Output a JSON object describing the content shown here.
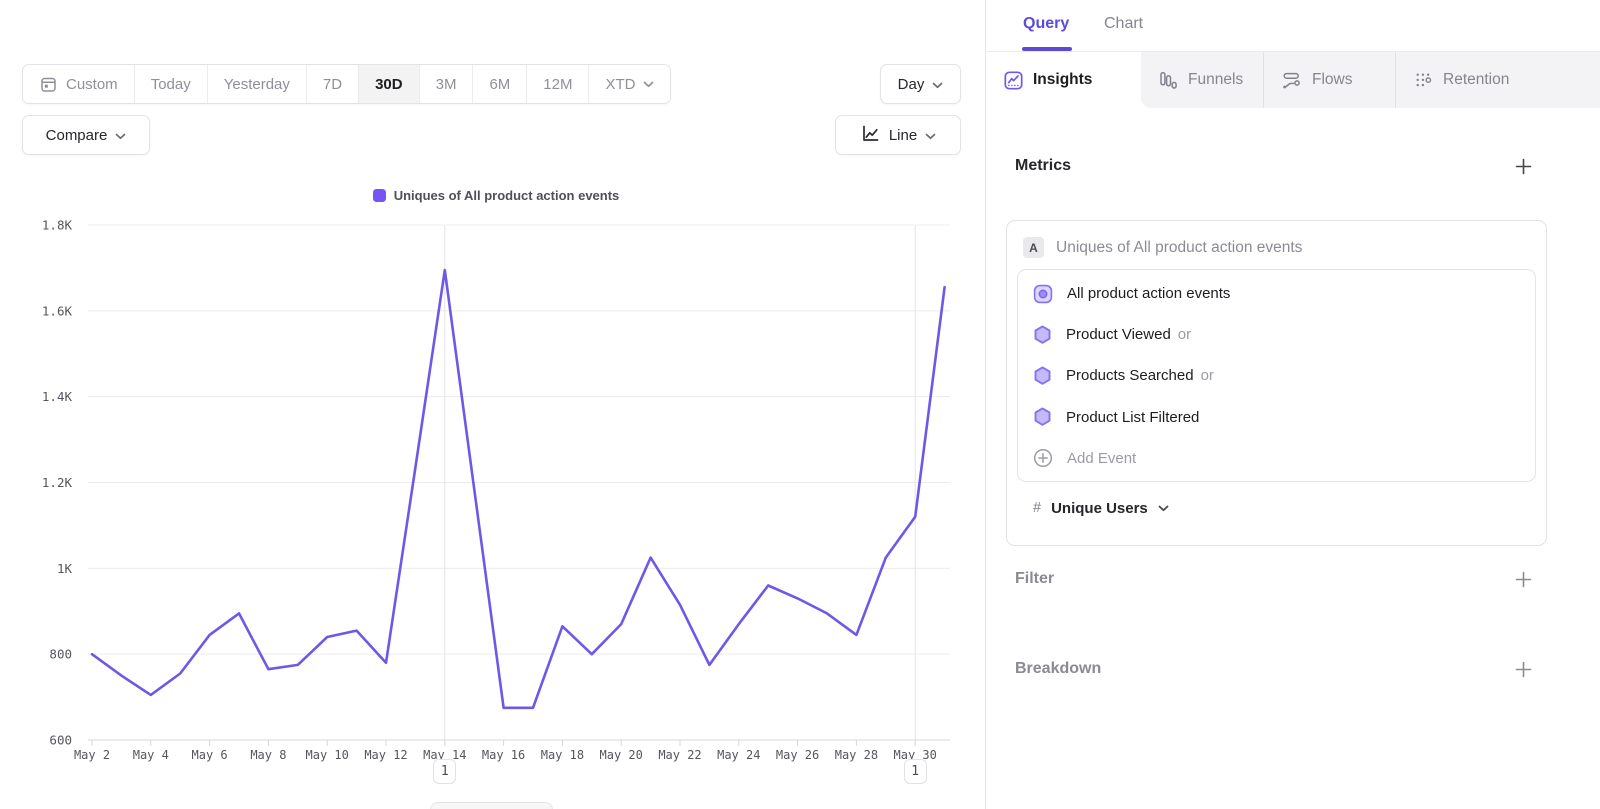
{
  "toolbar": {
    "date_ranges": [
      {
        "label": "Custom",
        "icon": "calendar-icon"
      },
      {
        "label": "Today"
      },
      {
        "label": "Yesterday"
      },
      {
        "label": "7D"
      },
      {
        "label": "30D",
        "active": true
      },
      {
        "label": "3M"
      },
      {
        "label": "6M"
      },
      {
        "label": "12M"
      },
      {
        "label": "XTD",
        "chevron": true
      }
    ],
    "granularity": {
      "label": "Day"
    },
    "compare": {
      "label": "Compare"
    },
    "chart_type": {
      "label": "Line",
      "icon": "line-chart-icon"
    }
  },
  "chart_data": {
    "type": "line",
    "legend": "Uniques of All product action events",
    "line_color": "#6e58e8",
    "x": [
      "May 2",
      "May 3",
      "May 4",
      "May 5",
      "May 6",
      "May 7",
      "May 8",
      "May 9",
      "May 10",
      "May 11",
      "May 12",
      "May 13",
      "May 14",
      "May 15",
      "May 16",
      "May 17",
      "May 18",
      "May 19",
      "May 20",
      "May 21",
      "May 22",
      "May 23",
      "May 24",
      "May 25",
      "May 26",
      "May 27",
      "May 28",
      "May 29",
      "May 30",
      "May 31"
    ],
    "values": [
      800,
      750,
      705,
      755,
      845,
      895,
      765,
      775,
      840,
      855,
      780,
      1235,
      1695,
      1185,
      675,
      675,
      865,
      800,
      870,
      1025,
      915,
      775,
      870,
      960,
      930,
      895,
      845,
      1025,
      1120,
      1655
    ],
    "ylim": [
      600,
      1800
    ],
    "ytick_values": [
      600,
      800,
      1000,
      1200,
      1400,
      1600,
      1800
    ],
    "ytick_labels": [
      "600",
      "800",
      "1K",
      "1.2K",
      "1.4K",
      "1.6K",
      "1.8K"
    ],
    "xtick_every": 2,
    "grid": true,
    "legend_position": "top-center",
    "annotations": [
      {
        "label": "1",
        "x": "May 14"
      },
      {
        "label": "1",
        "x": "May 30"
      }
    ]
  },
  "panel": {
    "tabs": [
      {
        "label": "Query",
        "active": true
      },
      {
        "label": "Chart",
        "active": false
      }
    ],
    "report_tabs": [
      {
        "label": "Insights",
        "icon": "insights-icon",
        "active": true
      },
      {
        "label": "Funnels",
        "icon": "funnels-icon",
        "active": false
      },
      {
        "label": "Flows",
        "icon": "flows-icon",
        "active": false
      },
      {
        "label": "Retention",
        "icon": "retention-icon",
        "active": false
      }
    ],
    "metrics": {
      "heading": "Metrics",
      "add_label": "+",
      "series_badge": "A",
      "series_title": "Uniques of All product action events",
      "events": [
        {
          "icon": "custom-event-icon",
          "label": "All product action events",
          "suffix": ""
        },
        {
          "icon": "event-hexagon-icon",
          "label": "Product Viewed",
          "suffix": "or"
        },
        {
          "icon": "event-hexagon-icon",
          "label": "Products Searched",
          "suffix": "or"
        },
        {
          "icon": "event-hexagon-icon",
          "label": "Product List Filtered",
          "suffix": ""
        },
        {
          "icon": "add-circle-icon",
          "label": "Add Event",
          "suffix": "",
          "muted": true
        }
      ],
      "aggregation": {
        "prefix": "#",
        "label": "Unique Users"
      }
    },
    "sections": [
      {
        "heading": "Filter",
        "add_label": "+"
      },
      {
        "heading": "Breakdown",
        "add_label": "+"
      }
    ]
  }
}
